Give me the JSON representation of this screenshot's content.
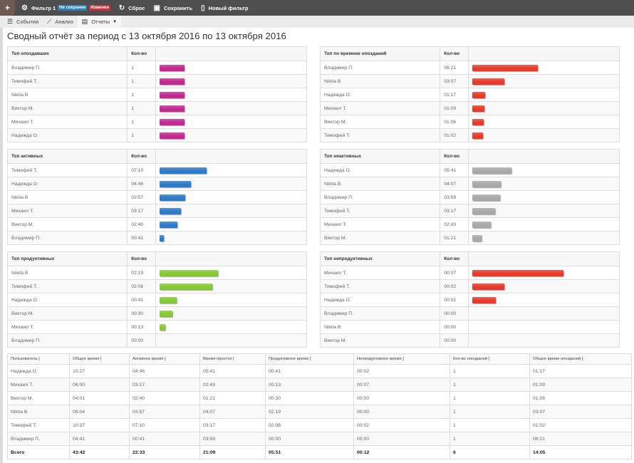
{
  "topbar": {
    "add_label": "+",
    "filter_icon": "gear-icon",
    "filter_name": "Фильтр 1",
    "badge_unsaved": "Не сохранен",
    "badge_changed": "Изменен",
    "reset_icon": "refresh-icon",
    "reset_label": "Сброс",
    "save_icon": "floppy-icon",
    "save_label": "Сохранить",
    "new_icon": "file-icon",
    "new_label": "Новый фильтр",
    "colors": {
      "bar": "#4e4e4e",
      "badge_blue": "#2f7fb5",
      "badge_red": "#c8323c"
    }
  },
  "subbar": {
    "events_label": "События",
    "analysis_label": "Анализ",
    "reports_label": "Отчеты"
  },
  "page_title": "Сводный отчёт за период с 13 октября 2016 по 13 октября 2016",
  "panels": [
    {
      "title": "Топ опоздавших",
      "col": "Кол-во",
      "color": "#c2288f",
      "rows": [
        {
          "name": "Владимир П.",
          "value": "1",
          "ratio": 1.0
        },
        {
          "name": "Тимофей Т.",
          "value": "1",
          "ratio": 1.0
        },
        {
          "name": "Nikita B",
          "value": "1",
          "ratio": 1.0
        },
        {
          "name": "Виктор М.",
          "value": "1",
          "ratio": 1.0
        },
        {
          "name": "Михаил Т.",
          "value": "1",
          "ratio": 1.0
        },
        {
          "name": "Надежда О.",
          "value": "1",
          "ratio": 1.0
        }
      ]
    },
    {
      "title": "Топ по времени опозданий",
      "col": "Кол-во",
      "color": "#e8392a",
      "rows": [
        {
          "name": "Владимир П.",
          "value": "06:21",
          "ratio": 1.0
        },
        {
          "name": "Nikita B",
          "value": "03:07",
          "ratio": 0.49
        },
        {
          "name": "Надежда О.",
          "value": "01:17",
          "ratio": 0.2
        },
        {
          "name": "Михаил Т.",
          "value": "01:09",
          "ratio": 0.18
        },
        {
          "name": "Виктор М.",
          "value": "01:06",
          "ratio": 0.17
        },
        {
          "name": "Тимофей Т.",
          "value": "01:02",
          "ratio": 0.16
        }
      ]
    },
    {
      "title": "Топ активных",
      "col": "Кол-во",
      "color": "#2d7ac8",
      "rows": [
        {
          "name": "Тимофей Т.",
          "value": "07:10",
          "ratio": 1.0
        },
        {
          "name": "Надежда О.",
          "value": "04:46",
          "ratio": 0.665
        },
        {
          "name": "Nikita B",
          "value": "03:57",
          "ratio": 0.551
        },
        {
          "name": "Михаил Т.",
          "value": "03:17",
          "ratio": 0.458
        },
        {
          "name": "Виктор М.",
          "value": "02:40",
          "ratio": 0.372
        },
        {
          "name": "Владимир П.",
          "value": "00:41",
          "ratio": 0.095
        }
      ]
    },
    {
      "title": "Топ неактивных",
      "col": "Кол-во",
      "color": "#a8a8a8",
      "rows": [
        {
          "name": "Надежда О.",
          "value": "05:41",
          "ratio": 1.0
        },
        {
          "name": "Nikita B",
          "value": "04:07",
          "ratio": 0.724
        },
        {
          "name": "Владимир П.",
          "value": "03:59",
          "ratio": 0.701
        },
        {
          "name": "Тимофей Т.",
          "value": "03:17",
          "ratio": 0.578
        },
        {
          "name": "Михаил Т.",
          "value": "02:43",
          "ratio": 0.478
        },
        {
          "name": "Виктор М.",
          "value": "01:21",
          "ratio": 0.238
        }
      ]
    },
    {
      "title": "Топ продуктивных",
      "col": "Кол-во",
      "color": "#86c832",
      "rows": [
        {
          "name": "Nikita B",
          "value": "02:19",
          "ratio": 1.0
        },
        {
          "name": "Тимофей Т.",
          "value": "02:06",
          "ratio": 0.906
        },
        {
          "name": "Надежда О.",
          "value": "00:41",
          "ratio": 0.295
        },
        {
          "name": "Виктор М.",
          "value": "00:30",
          "ratio": 0.216
        },
        {
          "name": "Михаил Т.",
          "value": "00:13",
          "ratio": 0.094
        },
        {
          "name": "Владимир П.",
          "value": "00:00",
          "ratio": 0
        }
      ]
    },
    {
      "title": "Топ непродуктивных",
      "col": "Кол-во",
      "color": "#e8392a",
      "rows": [
        {
          "name": "Михаил Т.",
          "value": "00:07",
          "ratio": 1.0
        },
        {
          "name": "Тимофей Т.",
          "value": "00:02",
          "ratio": 0.35
        },
        {
          "name": "Надежда О.",
          "value": "00:02",
          "ratio": 0.26
        },
        {
          "name": "Владимир П.",
          "value": "00:00",
          "ratio": 0
        },
        {
          "name": "Nikita B",
          "value": "00:00",
          "ratio": 0
        },
        {
          "name": "Виктор М.",
          "value": "00:00",
          "ratio": 0
        }
      ]
    }
  ],
  "summary": {
    "headers": [
      "Пользователь [",
      "Общее время ]",
      "Активное время ]",
      "Время простоя [",
      "Продуктивное время ]",
      "Непродуктивное время ]",
      "Кол-во опозданий [",
      "Общее время опозданий ["
    ],
    "rows": [
      [
        "Надежда О.",
        "10:27",
        "04:46",
        "05:41",
        "00:41",
        "00:02",
        "1",
        "01:17"
      ],
      [
        "Михаил Т.",
        "06:00",
        "03:17",
        "02:43",
        "00:13",
        "00:07",
        "1",
        "01:09"
      ],
      [
        "Виктор М.",
        "04:01",
        "02:40",
        "01:21",
        "00:30",
        "00:00",
        "1",
        "01:06"
      ],
      [
        "Nikita B",
        "08:04",
        "03:57",
        "04:07",
        "02:19",
        "00:00",
        "1",
        "03:07"
      ],
      [
        "Тимофей Т.",
        "10:27",
        "07:10",
        "03:17",
        "02:06",
        "00:02",
        "1",
        "01:02"
      ],
      [
        "Владимир П.",
        "04:41",
        "00:41",
        "03:59",
        "00:00",
        "00:00",
        "1",
        "06:21"
      ]
    ],
    "total": [
      "Всего",
      "43:42",
      "22:33",
      "21:09",
      "05:51",
      "00:12",
      "6",
      "14:05"
    ]
  }
}
